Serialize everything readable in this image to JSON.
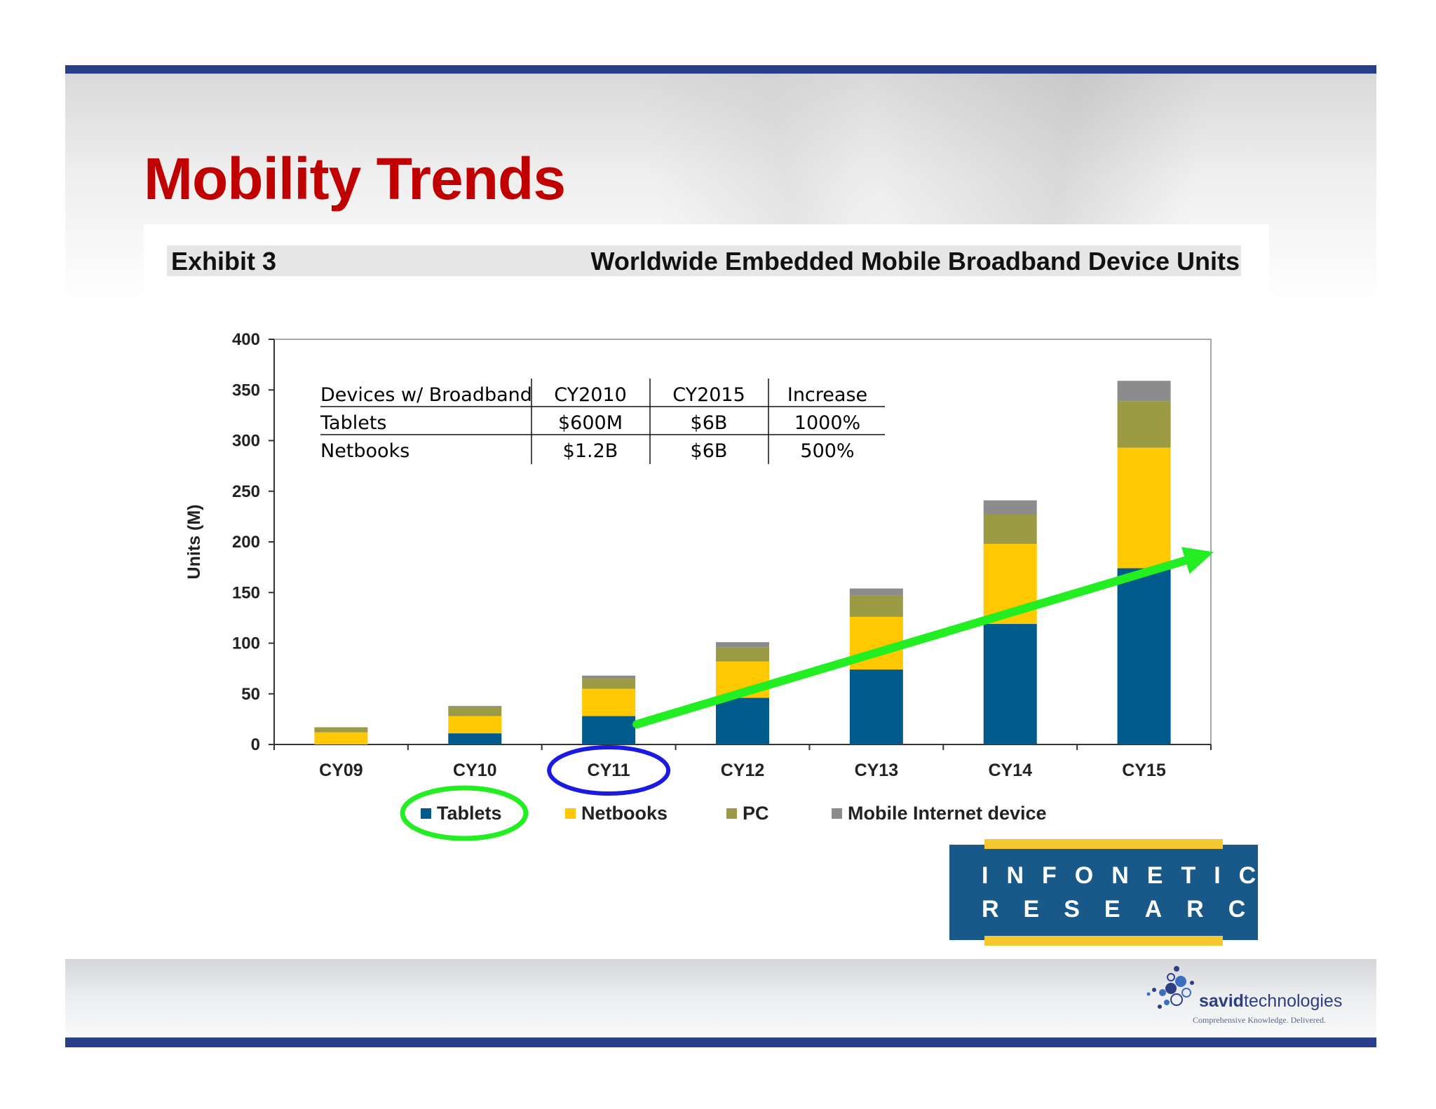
{
  "page_title": "Mobility Trends",
  "exhibit": {
    "label": "Exhibit 3",
    "title": "Worldwide Embedded Mobile Broadband Device Units"
  },
  "table": {
    "headers": [
      "Devices w/ Broadband",
      "CY2010",
      "CY2015",
      "Increase"
    ],
    "rows": [
      [
        "Tablets",
        "$600M",
        "$6B",
        "1000%"
      ],
      [
        "Netbooks",
        "$1.2B",
        "$6B",
        "500%"
      ]
    ]
  },
  "chart_data": {
    "type": "bar",
    "stacked": true,
    "title": "Worldwide Embedded Mobile Broadband Device Units",
    "ylabel": "Units (M)",
    "xlabel": "",
    "ylim": [
      0,
      400
    ],
    "yticks": [
      0,
      50,
      100,
      150,
      200,
      250,
      300,
      350,
      400
    ],
    "categories": [
      "CY09",
      "CY10",
      "CY11",
      "CY12",
      "CY13",
      "CY14",
      "CY15"
    ],
    "series": [
      {
        "name": "Tablets",
        "color": "#005a8c",
        "values": [
          0,
          11,
          28,
          46,
          74,
          119,
          174
        ]
      },
      {
        "name": "Netbooks",
        "color": "#ffc800",
        "values": [
          12,
          17,
          27,
          36,
          52,
          79,
          119
        ]
      },
      {
        "name": "PC",
        "color": "#9c9b45",
        "values": [
          5,
          9,
          10,
          14,
          21,
          29,
          46
        ]
      },
      {
        "name": "Mobile Internet device",
        "color": "#8c8c8c",
        "values": [
          0,
          1,
          3,
          5,
          7,
          14,
          20
        ]
      }
    ],
    "legend_position": "bottom",
    "grid": false,
    "annotations": {
      "trend_arrow": {
        "color": "#22ee22",
        "from": {
          "x": "CY11",
          "y": 20
        },
        "to": {
          "x": "CY15",
          "y": 190
        }
      },
      "highlighted_category": {
        "category": "CY11",
        "ellipse_color": "#1a1ae0"
      },
      "highlighted_legend": {
        "series": "Tablets",
        "ellipse_color": "#22ee22"
      }
    }
  },
  "logos": {
    "infonetics": {
      "line1": "INFONETICS",
      "line2": "RESEARCH"
    },
    "savid": {
      "name_bold": "savid",
      "name_regular": "technologies",
      "tagline": "Comprehensive Knowledge. Delivered."
    }
  }
}
